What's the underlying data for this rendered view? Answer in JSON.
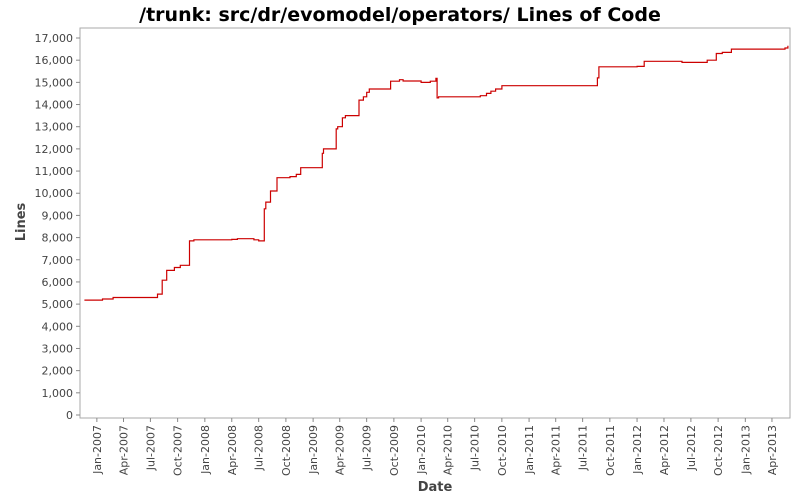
{
  "chart_data": {
    "type": "line",
    "title": "/trunk: src/dr/evomodel/operators/ Lines of Code",
    "xlabel": "Date",
    "ylabel": "Lines",
    "ylim": [
      0,
      17000
    ],
    "xlim": [
      "2006-11-05",
      "2013-06-01"
    ],
    "grid": false,
    "y_ticks": [
      0,
      1000,
      2000,
      3000,
      4000,
      5000,
      6000,
      7000,
      8000,
      9000,
      10000,
      11000,
      12000,
      13000,
      14000,
      15000,
      16000,
      17000
    ],
    "y_tick_labels": [
      "0",
      "1,000",
      "2,000",
      "3,000",
      "4,000",
      "5,000",
      "6,000",
      "7,000",
      "8,000",
      "9,000",
      "10,000",
      "11,000",
      "12,000",
      "13,000",
      "14,000",
      "15,000",
      "16,000",
      "17,000"
    ],
    "x_ticks": [
      "2007-01-01",
      "2007-04-01",
      "2007-07-01",
      "2007-10-01",
      "2008-01-01",
      "2008-04-01",
      "2008-07-01",
      "2008-10-01",
      "2009-01-01",
      "2009-04-01",
      "2009-07-01",
      "2009-10-01",
      "2010-01-01",
      "2010-04-01",
      "2010-07-01",
      "2010-10-01",
      "2011-01-01",
      "2011-04-01",
      "2011-07-01",
      "2011-10-01",
      "2012-01-01",
      "2012-04-01",
      "2012-07-01",
      "2012-10-01",
      "2013-01-01",
      "2013-04-01"
    ],
    "x_tick_labels": [
      "Jan-2007",
      "Apr-2007",
      "Jul-2007",
      "Oct-2007",
      "Jan-2008",
      "Apr-2008",
      "Jul-2008",
      "Oct-2008",
      "Jan-2009",
      "Apr-2009",
      "Jul-2009",
      "Oct-2009",
      "Jan-2010",
      "Apr-2010",
      "Jul-2010",
      "Oct-2010",
      "Jan-2011",
      "Apr-2011",
      "Jul-2011",
      "Oct-2011",
      "Jan-2012",
      "Apr-2012",
      "Jul-2012",
      "Oct-2012",
      "Jan-2013",
      "Apr-2013"
    ],
    "series": [
      {
        "color": "#cc0000",
        "step": true,
        "points": [
          [
            "2006-11-20",
            5180
          ],
          [
            "2007-01-20",
            5230
          ],
          [
            "2007-02-25",
            5300
          ],
          [
            "2007-07-25",
            5450
          ],
          [
            "2007-08-10",
            6080
          ],
          [
            "2007-08-25",
            6520
          ],
          [
            "2007-09-20",
            6650
          ],
          [
            "2007-10-10",
            6750
          ],
          [
            "2007-11-10",
            7850
          ],
          [
            "2007-11-25",
            7900
          ],
          [
            "2008-04-01",
            7920
          ],
          [
            "2008-04-20",
            7950
          ],
          [
            "2008-06-15",
            7900
          ],
          [
            "2008-07-01",
            7850
          ],
          [
            "2008-07-20",
            9300
          ],
          [
            "2008-07-25",
            9600
          ],
          [
            "2008-08-10",
            10100
          ],
          [
            "2008-09-01",
            10700
          ],
          [
            "2008-10-15",
            10750
          ],
          [
            "2008-11-05",
            10850
          ],
          [
            "2008-11-20",
            11150
          ],
          [
            "2009-02-01",
            11800
          ],
          [
            "2009-02-05",
            12000
          ],
          [
            "2009-03-20",
            12900
          ],
          [
            "2009-03-25",
            13000
          ],
          [
            "2009-04-10",
            13400
          ],
          [
            "2009-04-20",
            13500
          ],
          [
            "2009-06-05",
            14200
          ],
          [
            "2009-06-20",
            14350
          ],
          [
            "2009-07-01",
            14550
          ],
          [
            "2009-07-10",
            14700
          ],
          [
            "2009-09-20",
            15050
          ],
          [
            "2009-10-20",
            15120
          ],
          [
            "2009-11-01",
            15060
          ],
          [
            "2010-01-01",
            15000
          ],
          [
            "2010-02-01",
            15050
          ],
          [
            "2010-02-20",
            15180
          ],
          [
            "2010-02-24",
            14300
          ],
          [
            "2010-03-01",
            14350
          ],
          [
            "2010-07-20",
            14400
          ],
          [
            "2010-08-10",
            14500
          ],
          [
            "2010-08-25",
            14600
          ],
          [
            "2010-09-10",
            14700
          ],
          [
            "2010-10-01",
            14850
          ],
          [
            "2011-08-20",
            15200
          ],
          [
            "2011-08-25",
            15700
          ],
          [
            "2012-01-01",
            15720
          ],
          [
            "2012-01-25",
            15950
          ],
          [
            "2012-05-15",
            15950
          ],
          [
            "2012-06-01",
            15900
          ],
          [
            "2012-08-25",
            16000
          ],
          [
            "2012-09-25",
            16300
          ],
          [
            "2012-10-15",
            16350
          ],
          [
            "2012-11-15",
            16500
          ],
          [
            "2013-05-15",
            16550
          ],
          [
            "2013-05-25",
            16620
          ]
        ],
        "end_x": "2013-05-27"
      }
    ]
  }
}
